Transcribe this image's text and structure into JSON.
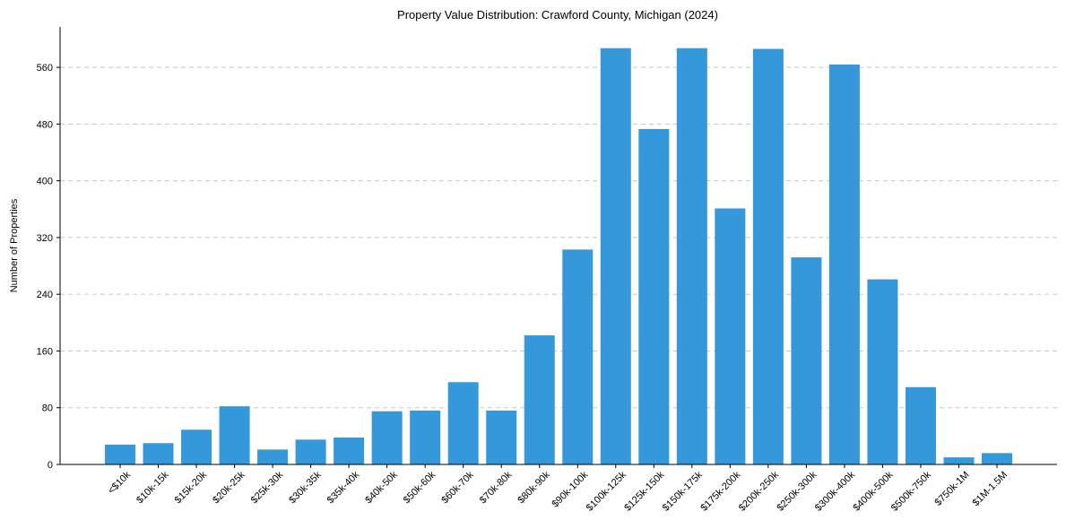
{
  "chart_data": {
    "type": "bar",
    "title": "Property Value Distribution: Crawford County, Michigan (2024)",
    "xlabel": "",
    "ylabel": "Number of Properties",
    "categories": [
      "<$10k",
      "$10k-15k",
      "$15k-20k",
      "$20k-25k",
      "$25k-30k",
      "$30k-35k",
      "$35k-40k",
      "$40k-50k",
      "$50k-60k",
      "$60k-70k",
      "$70k-80k",
      "$80k-90k",
      "$90k-100k",
      "$100k-125k",
      "$125k-150k",
      "$150k-175k",
      "$175k-200k",
      "$200k-250k",
      "$250k-300k",
      "$300k-400k",
      "$400k-500k",
      "$500k-750k",
      "$750k-1M",
      "$1M-1.5M"
    ],
    "values": [
      28,
      30,
      49,
      82,
      21,
      35,
      38,
      75,
      76,
      116,
      76,
      182,
      303,
      587,
      473,
      587,
      361,
      586,
      292,
      564,
      261,
      109,
      10,
      16
    ],
    "yticks": [
      0,
      80,
      160,
      240,
      320,
      400,
      480,
      560
    ],
    "ylim": [
      0,
      617
    ],
    "grid": true,
    "bar_color": "#3498db"
  }
}
